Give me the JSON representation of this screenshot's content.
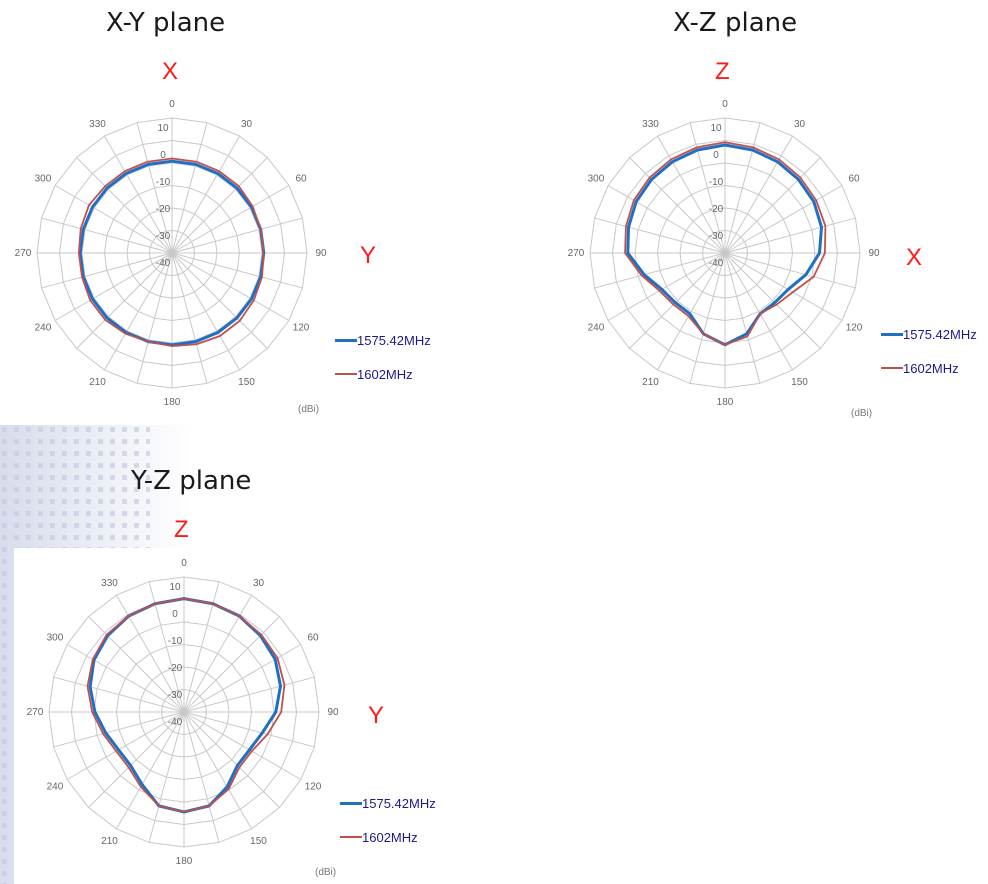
{
  "colors": {
    "series1": "#1f6fc2",
    "series2": "#c0504d",
    "grid": "#c8c8c8",
    "axis_letter": "#ff1a1a",
    "legend_text": "#1a1a8c"
  },
  "chart_data": [
    {
      "type": "polar-line",
      "title": "X-Y plane",
      "top_axis": "X",
      "right_axis": "Y",
      "unit": "(dBi)",
      "r_ticks": [
        "10",
        "0",
        "-10",
        "-20",
        "-30",
        "-40"
      ],
      "rlim": [
        -40,
        10
      ],
      "angle_ticks": [
        "0",
        "30",
        "60",
        "90",
        "120",
        "150",
        "180",
        "210",
        "240",
        "270",
        "300",
        "330"
      ],
      "angles": [
        0,
        15,
        30,
        45,
        60,
        75,
        90,
        105,
        120,
        135,
        150,
        165,
        180,
        195,
        210,
        225,
        240,
        255,
        270,
        285,
        300,
        315,
        330,
        345
      ],
      "series": [
        {
          "name": "1575.42MHz",
          "values": [
            -6,
            -6,
            -6,
            -6,
            -6,
            -6,
            -6,
            -6,
            -6,
            -6,
            -6,
            -6,
            -6,
            -6,
            -6,
            -6,
            -6,
            -6,
            -6,
            -6,
            -6,
            -6,
            -6,
            -6
          ]
        },
        {
          "name": "1602MHz",
          "values": [
            -5,
            -5,
            -5,
            -5,
            -5.5,
            -6,
            -6,
            -5.5,
            -5,
            -4.5,
            -4.5,
            -5,
            -5.5,
            -6,
            -5.5,
            -5,
            -5,
            -5.5,
            -5.5,
            -5,
            -4.5,
            -5,
            -5,
            -5
          ]
        }
      ]
    },
    {
      "type": "polar-line",
      "title": "X-Z plane",
      "top_axis": "Z",
      "right_axis": "X",
      "unit": "(dBi)",
      "r_ticks": [
        "10",
        "0",
        "-10",
        "-20",
        "-30",
        "-40"
      ],
      "rlim": [
        -40,
        10
      ],
      "angle_ticks": [
        "0",
        "30",
        "60",
        "90",
        "120",
        "150",
        "180",
        "210",
        "240",
        "270",
        "300",
        "330"
      ],
      "angles": [
        0,
        15,
        30,
        45,
        60,
        75,
        90,
        105,
        120,
        135,
        150,
        165,
        180,
        195,
        210,
        225,
        240,
        255,
        270,
        285,
        300,
        315,
        330,
        345
      ],
      "series": [
        {
          "name": "1575.42MHz",
          "values": [
            0,
            -0.5,
            -1,
            -1.5,
            -2,
            -3,
            -5,
            -9,
            -13,
            -14,
            -14,
            -9,
            -6,
            -9,
            -14,
            -14,
            -13,
            -9,
            -4,
            -3,
            -2,
            -1.5,
            -1,
            -0.5
          ]
        },
        {
          "name": "1602MHz",
          "values": [
            1,
            0.5,
            0,
            -0.5,
            -1,
            -1.5,
            -3,
            -6,
            -11,
            -13,
            -14,
            -8,
            -6,
            -9,
            -13,
            -13,
            -12,
            -8,
            -3,
            -2,
            -1,
            -0.5,
            0,
            0.5
          ]
        }
      ]
    },
    {
      "type": "polar-line",
      "title": "Y-Z plane",
      "top_axis": "Z",
      "right_axis": "Y",
      "unit": "(dBi)",
      "r_ticks": [
        "10",
        "0",
        "-10",
        "-20",
        "-30",
        "-40"
      ],
      "rlim": [
        -40,
        10
      ],
      "angle_ticks": [
        "0",
        "30",
        "60",
        "90",
        "120",
        "150",
        "180",
        "210",
        "240",
        "270",
        "300",
        "330"
      ],
      "angles": [
        0,
        15,
        30,
        45,
        60,
        75,
        90,
        105,
        120,
        135,
        150,
        165,
        180,
        195,
        210,
        225,
        240,
        255,
        270,
        285,
        300,
        315,
        330,
        345
      ],
      "series": [
        {
          "name": "1575.42MHz",
          "values": [
            2,
            1.5,
            1,
            0,
            -1,
            -3,
            -6,
            -10,
            -12,
            -12,
            -8,
            -4,
            -3,
            -4,
            -9,
            -12,
            -12,
            -10,
            -7,
            -4,
            -1.5,
            0,
            1,
            1.5
          ]
        },
        {
          "name": "1602MHz",
          "values": [
            2,
            1.5,
            1,
            0.5,
            0,
            -1.5,
            -4,
            -8,
            -11,
            -11,
            -7,
            -4,
            -3,
            -4,
            -8,
            -11,
            -11,
            -9,
            -6,
            -3,
            -1,
            0.5,
            1,
            1.5
          ]
        }
      ]
    }
  ]
}
